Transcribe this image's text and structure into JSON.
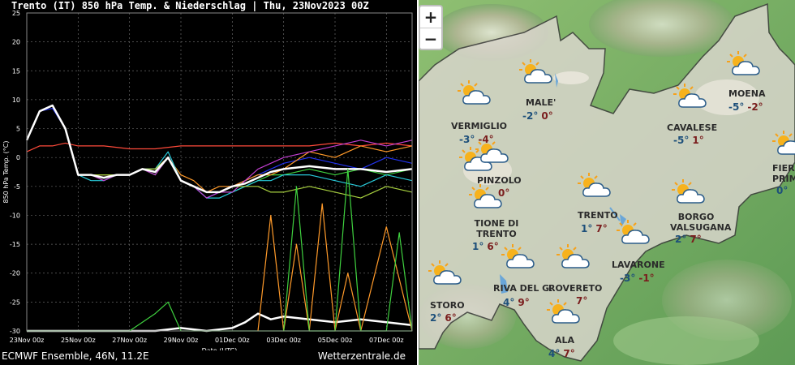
{
  "chart": {
    "title": "Trento  (IT)  850 hPa Temp. & Niederschlag | Thu, 23Nov2023 00Z",
    "footer_left": "ECMWF Ensemble, 46N, 11.2E",
    "footer_right": "Wetterzentrale.de"
  },
  "chart_data": {
    "type": "line",
    "ylabel": "850 hPa Temp. (°C)",
    "xlabel": "Date (UTC)",
    "ylim": [
      -30,
      25
    ],
    "yticks": [
      25,
      20,
      15,
      10,
      5,
      0,
      -5,
      -10,
      -15,
      -20,
      -25,
      -30
    ],
    "x_tick_labels": [
      "23Nov 00z",
      "25Nov 00z",
      "27Nov 00z",
      "29Nov 00z",
      "01Dec 00z",
      "03Dec 00z",
      "05Dec 00z",
      "07Dec 00z"
    ],
    "x_range_days": [
      0,
      15
    ],
    "grid": true,
    "series": [
      {
        "color": "#ff4a3a",
        "days": [
          0,
          0.5,
          1,
          1.5,
          2,
          3,
          4,
          5,
          6,
          7,
          8,
          9,
          10,
          11,
          12,
          13,
          14,
          15
        ],
        "values": [
          1,
          2,
          2,
          2.5,
          2,
          2,
          1.5,
          1.5,
          2,
          2,
          2,
          2,
          2,
          2,
          2.5,
          2,
          2.5,
          2
        ]
      },
      {
        "color": "#3fd13f",
        "days": [
          0,
          0.5,
          1,
          1.5,
          2,
          2.5,
          3,
          3.5,
          4,
          4.5,
          5,
          5.5,
          6,
          6.5,
          7,
          7.5,
          8,
          8.5,
          9,
          9.5,
          10,
          11,
          12,
          13,
          14,
          15
        ],
        "values": [
          3,
          8,
          9,
          5,
          -3,
          -3,
          -4,
          -3,
          -3,
          -2,
          -3,
          0,
          -4,
          -5,
          -7,
          -6,
          -6,
          -5,
          -4,
          -3,
          -3,
          -2,
          -3,
          -2,
          -3,
          -2
        ]
      },
      {
        "color": "#2233ee",
        "days": [
          0,
          0.5,
          1,
          1.5,
          2,
          2.5,
          3,
          3.5,
          4,
          4.5,
          5,
          5.5,
          6,
          6.5,
          7,
          7.5,
          8,
          8.5,
          9,
          9.5,
          10,
          11,
          12,
          13,
          14,
          15
        ],
        "values": [
          3,
          8,
          8.5,
          5,
          -3,
          -3,
          -3,
          -3,
          -3,
          -2,
          -2,
          0,
          -4,
          -5,
          -7,
          -6,
          -5,
          -4,
          -3,
          -2,
          -1,
          0,
          -1,
          -2,
          0,
          -1
        ]
      },
      {
        "color": "#ff9a2a",
        "days": [
          0,
          0.5,
          1,
          1.5,
          2,
          2.5,
          3,
          3.5,
          4,
          4.5,
          5,
          5.5,
          6,
          6.5,
          7,
          7.5,
          8,
          8.5,
          9,
          9.5,
          10,
          11,
          12,
          13,
          14,
          15
        ],
        "values": [
          3,
          8,
          9,
          5,
          -3,
          -3,
          -3,
          -3,
          -3,
          -2,
          -2,
          0,
          -3,
          -4,
          -6,
          -5,
          -5,
          -4,
          -3,
          -3,
          -2,
          1,
          0,
          2,
          1,
          2
        ]
      },
      {
        "color": "#28c9d9",
        "days": [
          0,
          0.5,
          1,
          1.5,
          2,
          2.5,
          3,
          3.5,
          4,
          4.5,
          5,
          5.5,
          6,
          6.5,
          7,
          7.5,
          8,
          8.5,
          9,
          9.5,
          10,
          11,
          12,
          13,
          14,
          15
        ],
        "values": [
          3,
          8,
          9,
          5,
          -3,
          -4,
          -4,
          -3,
          -3,
          -2,
          -2,
          1,
          -4,
          -5,
          -7,
          -7,
          -6,
          -5,
          -4,
          -4,
          -3,
          -3,
          -4,
          -5,
          -3,
          -4
        ]
      },
      {
        "color": "#c13fd1",
        "days": [
          0,
          0.5,
          1,
          1.5,
          2,
          2.5,
          3,
          3.5,
          4,
          4.5,
          5,
          5.5,
          6,
          6.5,
          7,
          7.5,
          8,
          8.5,
          9,
          9.5,
          10,
          11,
          12,
          13,
          14,
          15
        ],
        "values": [
          3,
          8,
          9,
          5,
          -3,
          -3,
          -4,
          -3,
          -3,
          -2,
          -3,
          0,
          -4,
          -5,
          -7,
          -6,
          -6,
          -4,
          -2,
          -1,
          0,
          1,
          2,
          3,
          2,
          3
        ]
      },
      {
        "color": "#a8d13f",
        "days": [
          0,
          0.5,
          1,
          1.5,
          2,
          2.5,
          3,
          3.5,
          4,
          4.5,
          5,
          5.5,
          6,
          6.5,
          7,
          7.5,
          8,
          8.5,
          9,
          9.5,
          10,
          11,
          12,
          13,
          14,
          15
        ],
        "values": [
          3,
          8,
          9,
          5,
          -3,
          -3,
          -3,
          -3,
          -3,
          -2,
          -2,
          0,
          -4,
          -5,
          -6,
          -6,
          -5,
          -5,
          -5,
          -6,
          -6,
          -5,
          -6,
          -7,
          -5,
          -6
        ]
      },
      {
        "color": "#ffffff",
        "width": 2.5,
        "days": [
          0,
          0.5,
          1,
          1.5,
          2,
          2.5,
          3,
          3.5,
          4,
          4.5,
          5,
          5.5,
          6,
          6.5,
          7,
          7.5,
          8,
          8.5,
          9,
          9.5,
          10,
          11,
          12,
          13,
          14,
          15
        ],
        "values": [
          3,
          8,
          9,
          5,
          -3,
          -3,
          -3.5,
          -3,
          -3,
          -2,
          -2.5,
          0,
          -4,
          -5,
          -6,
          -6,
          -5,
          -4.5,
          -3.5,
          -2.5,
          -2,
          -1.5,
          -2,
          -2,
          -2.5,
          -2
        ]
      },
      {
        "color": "#ffffff",
        "width": 2.5,
        "days": [
          0,
          1,
          2,
          3,
          4,
          5,
          6,
          7,
          8,
          8.5,
          9,
          9.5,
          10,
          11,
          12,
          13,
          14,
          15
        ],
        "values": [
          -30,
          -30,
          -30,
          -30,
          -30,
          -30,
          -29.5,
          -30,
          -29.5,
          -28.5,
          -27,
          -28,
          -27.5,
          -28,
          -28.5,
          -28,
          -28.5,
          -29
        ]
      },
      {
        "color": "#3fd13f",
        "days": [
          0,
          1,
          2,
          3,
          4,
          5,
          5.5,
          6,
          7,
          8,
          9,
          10,
          11,
          12,
          13,
          14,
          15
        ],
        "values": [
          -30,
          -30,
          -30,
          -30,
          -30,
          -27,
          -25,
          -30,
          -30,
          -30,
          -30,
          -30,
          -30,
          -30,
          -30,
          -30,
          -30
        ]
      },
      {
        "color": "#ff9a2a",
        "days": [
          9,
          9.5,
          10,
          10.5,
          11,
          11.5,
          12,
          12.5,
          13,
          14,
          15
        ],
        "values": [
          -30,
          -10,
          -30,
          -15,
          -30,
          -8,
          -30,
          -20,
          -30,
          -12,
          -30
        ]
      },
      {
        "color": "#3fd13f",
        "days": [
          10,
          10.5,
          11,
          12,
          12.5,
          13,
          14,
          14.5,
          15
        ],
        "values": [
          -30,
          -5,
          -30,
          -30,
          -2,
          -30,
          -30,
          -13,
          -30
        ]
      }
    ]
  },
  "map": {
    "zoom_in": "+",
    "zoom_out": "−",
    "cities": [
      {
        "name": "MALE'",
        "tmin": "-2°",
        "tmax": "0°"
      },
      {
        "name": "VERMIGLIO",
        "tmin": "-3°",
        "tmax": "-4°"
      },
      {
        "name": "CAVALESE",
        "tmin": "-5°",
        "tmax": "1°"
      },
      {
        "name": "MOENA",
        "tmin": "-5°",
        "tmax": "-2°"
      },
      {
        "name": "PINZOLO",
        "tmin": "",
        "tmax": "0°"
      },
      {
        "name": "FIERA PRIMI",
        "tmin": "0°",
        "tmax": ""
      },
      {
        "name": "TIONE DI TRENTO",
        "tmin": "1°",
        "tmax": "6°"
      },
      {
        "name": "TRENTO",
        "tmin": "1°",
        "tmax": "7°"
      },
      {
        "name": "BORGO VALSUGANA",
        "tmin": "2°",
        "tmax": "7°"
      },
      {
        "name": "LAVARONE",
        "tmin": "-3°",
        "tmax": "-1°"
      },
      {
        "name": "RIVA DEL G.",
        "tmin": "4°",
        "tmax": "9°"
      },
      {
        "name": "ROVERETO",
        "tmin": "",
        "tmax": "7°"
      },
      {
        "name": "STORO",
        "tmin": "2°",
        "tmax": "6°"
      },
      {
        "name": "ALA",
        "tmin": "4°",
        "tmax": "7°"
      }
    ]
  }
}
